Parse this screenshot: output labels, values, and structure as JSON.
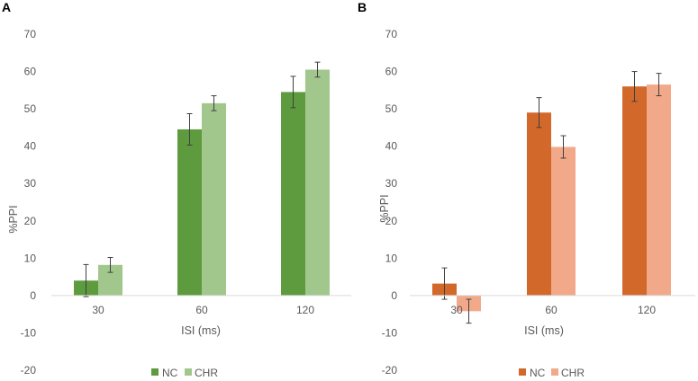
{
  "chart_data": [
    {
      "panel": "A",
      "type": "bar",
      "title": "",
      "xlabel": "ISI (ms)",
      "ylabel": "%PPI",
      "ylim": [
        -20,
        70
      ],
      "yticks": [
        -20,
        -10,
        0,
        10,
        20,
        30,
        40,
        50,
        60,
        70
      ],
      "categories": [
        "30",
        "60",
        "120"
      ],
      "legend_position": "bottom",
      "series": [
        {
          "name": "NC",
          "color": "#5e9b3e",
          "values": [
            4,
            44.5,
            54.5
          ],
          "errors": [
            4.3,
            4.2,
            4.2
          ]
        },
        {
          "name": "CHR",
          "color": "#a2c78d",
          "values": [
            8.2,
            51.5,
            60.5
          ],
          "errors": [
            2,
            2,
            2
          ]
        }
      ]
    },
    {
      "panel": "B",
      "type": "bar",
      "title": "",
      "xlabel": "ISI (ms)",
      "ylabel": "%PPI",
      "ylim": [
        -20,
        70
      ],
      "yticks": [
        -20,
        -10,
        0,
        10,
        20,
        30,
        40,
        50,
        60,
        70
      ],
      "categories": [
        "30",
        "60",
        "120"
      ],
      "legend_position": "bottom",
      "series": [
        {
          "name": "NC",
          "color": "#d2692b",
          "values": [
            3.2,
            49,
            56
          ],
          "errors": [
            4.2,
            4,
            4
          ]
        },
        {
          "name": "CHR",
          "color": "#f2a98a",
          "values": [
            -4.2,
            39.8,
            56.5
          ],
          "errors": [
            3.2,
            3,
            3
          ]
        }
      ]
    }
  ]
}
